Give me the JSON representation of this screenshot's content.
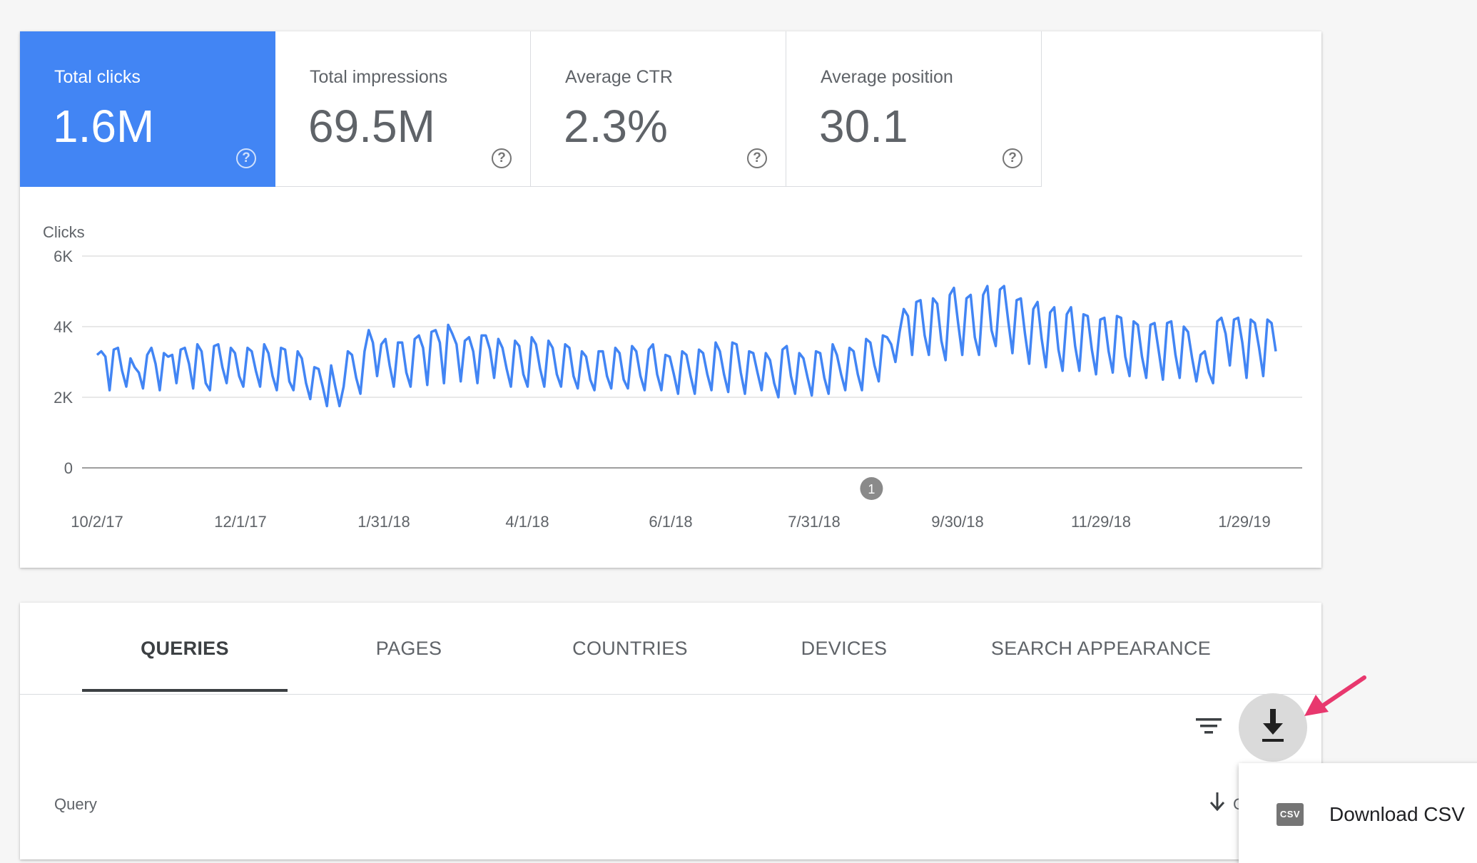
{
  "metrics": [
    {
      "label": "Total clicks",
      "value": "1.6M",
      "active": true
    },
    {
      "label": "Total impressions",
      "value": "69.5M",
      "active": false
    },
    {
      "label": "Average CTR",
      "value": "2.3%",
      "active": false
    },
    {
      "label": "Average position",
      "value": "30.1",
      "active": false
    }
  ],
  "help_glyph": "?",
  "chart_data": {
    "type": "line",
    "ylabel": "Clicks",
    "y_ticks": [
      "0",
      "2K",
      "4K",
      "6K"
    ],
    "ylim": [
      0,
      6000
    ],
    "x_tick_labels": [
      "10/2/17",
      "12/1/17",
      "1/31/18",
      "4/1/18",
      "6/1/18",
      "7/31/18",
      "9/30/18",
      "11/29/18",
      "1/29/19"
    ],
    "x_start": "2017-10-02",
    "x_end": "2019-01-29",
    "grid": true,
    "color": "#4285f4",
    "annotation": {
      "label": "1",
      "date": "2018-08-16"
    },
    "series": [
      {
        "values": [
          3200,
          3300,
          3150,
          2200,
          3350,
          3400,
          2750,
          2300,
          3100,
          2850,
          2700,
          2250,
          3200,
          3400,
          2950,
          2200,
          3250,
          3150,
          3200,
          2400,
          3350,
          3400,
          2950,
          2250,
          3500,
          3300,
          2400,
          2200,
          3450,
          3500,
          2850,
          2400,
          3400,
          3250,
          2600,
          2300,
          3400,
          3300,
          2750,
          2300,
          3500,
          3250,
          2600,
          2200,
          3400,
          3350,
          2450,
          2200,
          3300,
          3100,
          2400,
          1950,
          2850,
          2800,
          2300,
          1750,
          2900,
          2300,
          1750,
          2300,
          3300,
          3200,
          2550,
          2100,
          3300,
          3900,
          3550,
          2600,
          3500,
          3650,
          2900,
          2300,
          3550,
          3550,
          2700,
          2300,
          3650,
          3750,
          3400,
          2350,
          3850,
          3900,
          3550,
          2400,
          4050,
          3800,
          3500,
          2450,
          3600,
          3700,
          3300,
          2400,
          3750,
          3750,
          3350,
          2550,
          3650,
          3400,
          2800,
          2300,
          3600,
          3450,
          2650,
          2300,
          3700,
          3500,
          2800,
          2300,
          3600,
          3400,
          2650,
          2300,
          3500,
          3400,
          2600,
          2250,
          3300,
          3150,
          2500,
          2200,
          3300,
          3300,
          2600,
          2250,
          3400,
          3250,
          2500,
          2250,
          3450,
          3300,
          2600,
          2200,
          3350,
          3500,
          2650,
          2200,
          3200,
          3150,
          2650,
          2100,
          3300,
          3200,
          2600,
          2100,
          3350,
          3250,
          2650,
          2200,
          3550,
          3300,
          2650,
          2150,
          3550,
          3500,
          2700,
          2100,
          3300,
          3250,
          2700,
          2200,
          3250,
          3050,
          2400,
          2000,
          3350,
          3450,
          2600,
          2100,
          3250,
          3100,
          2550,
          2050,
          3300,
          3250,
          2550,
          2100,
          3500,
          3200,
          2650,
          2200,
          3400,
          3300,
          2650,
          2200,
          3650,
          3550,
          2900,
          2450,
          3750,
          3700,
          3500,
          3000,
          3850,
          4500,
          4300,
          3200,
          4700,
          4750,
          3750,
          3200,
          4800,
          4650,
          3600,
          3050,
          4900,
          5100,
          4100,
          3200,
          4800,
          4900,
          3700,
          3200,
          4900,
          5150,
          3900,
          3450,
          5050,
          5150,
          4150,
          3250,
          4750,
          4800,
          3800,
          2950,
          4500,
          4700,
          3650,
          2850,
          4400,
          4550,
          3350,
          2750,
          4350,
          4550,
          3450,
          2750,
          4350,
          4300,
          3350,
          2650,
          4200,
          4250,
          3300,
          2700,
          4300,
          4250,
          3150,
          2600,
          4150,
          4050,
          3150,
          2550,
          4050,
          4100,
          3300,
          2500,
          4100,
          4150,
          3200,
          2550,
          4000,
          3850,
          3100,
          2450,
          3200,
          3300,
          2700,
          2400,
          4150,
          4250,
          3800,
          2900,
          4200,
          4250,
          3550,
          2550,
          4200,
          4100,
          3400,
          2600,
          4200,
          4100,
          3300
        ]
      }
    ]
  },
  "tabs": [
    {
      "label": "QUERIES",
      "active": true
    },
    {
      "label": "PAGES",
      "active": false
    },
    {
      "label": "COUNTRIES",
      "active": false
    },
    {
      "label": "DEVICES",
      "active": false
    },
    {
      "label": "SEARCH APPEARANCE",
      "active": false
    }
  ],
  "table": {
    "query_header": "Query",
    "sort_column_label": "Clicks"
  },
  "menu": {
    "csv_badge": "CSV",
    "download_csv": "Download CSV"
  },
  "colors": {
    "accent": "#4285f4",
    "arrow": "#e8386e"
  }
}
